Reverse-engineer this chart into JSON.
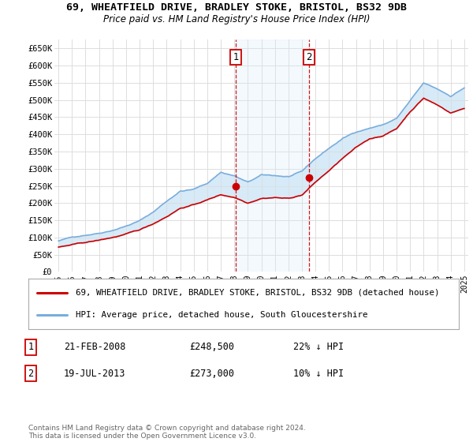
{
  "title": "69, WHEATFIELD DRIVE, BRADLEY STOKE, BRISTOL, BS32 9DB",
  "subtitle": "Price paid vs. HM Land Registry's House Price Index (HPI)",
  "legend_line1": "69, WHEATFIELD DRIVE, BRADLEY STOKE, BRISTOL, BS32 9DB (detached house)",
  "legend_line2": "HPI: Average price, detached house, South Gloucestershire",
  "footer": "Contains HM Land Registry data © Crown copyright and database right 2024.\nThis data is licensed under the Open Government Licence v3.0.",
  "transaction1_date": "21-FEB-2008",
  "transaction1_price": "£248,500",
  "transaction1_hpi": "22% ↓ HPI",
  "transaction2_date": "19-JUL-2013",
  "transaction2_price": "£273,000",
  "transaction2_hpi": "10% ↓ HPI",
  "red_color": "#cc0000",
  "blue_color": "#7aaddc",
  "blue_fill_color": "#d6eaf8",
  "vline_color": "#cc0000",
  "grid_color": "#dddddd",
  "bg_color": "#ffffff",
  "ylim": [
    0,
    675000
  ],
  "ytick_vals": [
    0,
    50000,
    100000,
    150000,
    200000,
    250000,
    300000,
    350000,
    400000,
    450000,
    500000,
    550000,
    600000,
    650000
  ],
  "ytick_labels": [
    "£0",
    "£50K",
    "£100K",
    "£150K",
    "£200K",
    "£250K",
    "£300K",
    "£350K",
    "£400K",
    "£450K",
    "£500K",
    "£550K",
    "£600K",
    "£650K"
  ],
  "xlim": [
    1994.7,
    2025.3
  ],
  "xtick_vals": [
    1995,
    1996,
    1997,
    1998,
    1999,
    2000,
    2001,
    2002,
    2003,
    2004,
    2005,
    2006,
    2007,
    2008,
    2009,
    2010,
    2011,
    2012,
    2013,
    2014,
    2015,
    2016,
    2017,
    2018,
    2019,
    2020,
    2021,
    2022,
    2023,
    2024,
    2025
  ],
  "hpi_x": [
    1995.0,
    1995.08,
    1995.17,
    1995.25,
    1995.33,
    1995.42,
    1995.5,
    1995.58,
    1995.67,
    1995.75,
    1995.83,
    1995.92,
    1996.0,
    1996.08,
    1996.17,
    1996.25,
    1996.33,
    1996.42,
    1996.5,
    1996.58,
    1996.67,
    1996.75,
    1996.83,
    1996.92,
    1997.0,
    1997.08,
    1997.17,
    1997.25,
    1997.33,
    1997.42,
    1997.5,
    1997.58,
    1997.67,
    1997.75,
    1997.83,
    1997.92,
    1998.0,
    1998.08,
    1998.17,
    1998.25,
    1998.33,
    1998.42,
    1998.5,
    1998.58,
    1998.67,
    1998.75,
    1998.83,
    1998.92,
    1999.0,
    1999.08,
    1999.17,
    1999.25,
    1999.33,
    1999.42,
    1999.5,
    1999.58,
    1999.67,
    1999.75,
    1999.83,
    1999.92,
    2000.0,
    2000.08,
    2000.17,
    2000.25,
    2000.33,
    2000.42,
    2000.5,
    2000.58,
    2000.67,
    2000.75,
    2000.83,
    2000.92,
    2001.0,
    2001.08,
    2001.17,
    2001.25,
    2001.33,
    2001.42,
    2001.5,
    2001.58,
    2001.67,
    2001.75,
    2001.83,
    2001.92,
    2002.0,
    2002.08,
    2002.17,
    2002.25,
    2002.33,
    2002.42,
    2002.5,
    2002.58,
    2002.67,
    2002.75,
    2002.83,
    2002.92,
    2003.0,
    2003.08,
    2003.17,
    2003.25,
    2003.33,
    2003.42,
    2003.5,
    2003.58,
    2003.67,
    2003.75,
    2003.83,
    2003.92,
    2004.0,
    2004.08,
    2004.17,
    2004.25,
    2004.33,
    2004.42,
    2004.5,
    2004.58,
    2004.67,
    2004.75,
    2004.83,
    2004.92,
    2005.0,
    2005.08,
    2005.17,
    2005.25,
    2005.33,
    2005.42,
    2005.5,
    2005.58,
    2005.67,
    2005.75,
    2005.83,
    2005.92,
    2006.0,
    2006.08,
    2006.17,
    2006.25,
    2006.33,
    2006.42,
    2006.5,
    2006.58,
    2006.67,
    2006.75,
    2006.83,
    2006.92,
    2007.0,
    2007.08,
    2007.17,
    2007.25,
    2007.33,
    2007.42,
    2007.5,
    2007.58,
    2007.67,
    2007.75,
    2007.83,
    2007.92,
    2008.0,
    2008.08,
    2008.17,
    2008.25,
    2008.33,
    2008.42,
    2008.5,
    2008.58,
    2008.67,
    2008.75,
    2008.83,
    2008.92,
    2009.0,
    2009.08,
    2009.17,
    2009.25,
    2009.33,
    2009.42,
    2009.5,
    2009.58,
    2009.67,
    2009.75,
    2009.83,
    2009.92,
    2010.0,
    2010.08,
    2010.17,
    2010.25,
    2010.33,
    2010.42,
    2010.5,
    2010.58,
    2010.67,
    2010.75,
    2010.83,
    2010.92,
    2011.0,
    2011.08,
    2011.17,
    2011.25,
    2011.33,
    2011.42,
    2011.5,
    2011.58,
    2011.67,
    2011.75,
    2011.83,
    2011.92,
    2012.0,
    2012.08,
    2012.17,
    2012.25,
    2012.33,
    2012.42,
    2012.5,
    2012.58,
    2012.67,
    2012.75,
    2012.83,
    2012.92,
    2013.0,
    2013.08,
    2013.17,
    2013.25,
    2013.33,
    2013.42,
    2013.5,
    2013.58,
    2013.67,
    2013.75,
    2013.83,
    2013.92,
    2014.0,
    2014.08,
    2014.17,
    2014.25,
    2014.33,
    2014.42,
    2014.5,
    2014.58,
    2014.67,
    2014.75,
    2014.83,
    2014.92,
    2015.0,
    2015.08,
    2015.17,
    2015.25,
    2015.33,
    2015.42,
    2015.5,
    2015.58,
    2015.67,
    2015.75,
    2015.83,
    2015.92,
    2016.0,
    2016.08,
    2016.17,
    2016.25,
    2016.33,
    2016.42,
    2016.5,
    2016.58,
    2016.67,
    2016.75,
    2016.83,
    2016.92,
    2017.0,
    2017.08,
    2017.17,
    2017.25,
    2017.33,
    2017.42,
    2017.5,
    2017.58,
    2017.67,
    2017.75,
    2017.83,
    2017.92,
    2018.0,
    2018.08,
    2018.17,
    2018.25,
    2018.33,
    2018.42,
    2018.5,
    2018.58,
    2018.67,
    2018.75,
    2018.83,
    2018.92,
    2019.0,
    2019.08,
    2019.17,
    2019.25,
    2019.33,
    2019.42,
    2019.5,
    2019.58,
    2019.67,
    2019.75,
    2019.83,
    2019.92,
    2020.0,
    2020.08,
    2020.17,
    2020.25,
    2020.33,
    2020.42,
    2020.5,
    2020.58,
    2020.67,
    2020.75,
    2020.83,
    2020.92,
    2021.0,
    2021.08,
    2021.17,
    2021.25,
    2021.33,
    2021.42,
    2021.5,
    2021.58,
    2021.67,
    2021.75,
    2021.83,
    2021.92,
    2022.0,
    2022.08,
    2022.17,
    2022.25,
    2022.33,
    2022.42,
    2022.5,
    2022.58,
    2022.67,
    2022.75,
    2022.83,
    2022.92,
    2023.0,
    2023.08,
    2023.17,
    2023.25,
    2023.33,
    2023.42,
    2023.5,
    2023.58,
    2023.67,
    2023.75,
    2023.83,
    2023.92,
    2024.0,
    2024.08,
    2024.17,
    2024.25,
    2024.33,
    2024.42,
    2024.5,
    2024.58,
    2024.67,
    2024.75,
    2024.83,
    2024.92,
    2025.0
  ],
  "hpi_y_anchors": {
    "1995": 90000,
    "1996": 100000,
    "1997": 108000,
    "1998": 115000,
    "1999": 125000,
    "2000": 138000,
    "2001": 153000,
    "2002": 178000,
    "2003": 210000,
    "2004": 240000,
    "2005": 245000,
    "2006": 262000,
    "2007": 295000,
    "2008": 285000,
    "2009": 265000,
    "2010": 285000,
    "2011": 283000,
    "2012": 280000,
    "2013": 293000,
    "2014": 330000,
    "2015": 360000,
    "2016": 388000,
    "2017": 408000,
    "2018": 420000,
    "2019": 430000,
    "2020": 448000,
    "2021": 498000,
    "2022": 548000,
    "2023": 530000,
    "2024": 510000,
    "2025": 535000
  },
  "red_y_anchors": {
    "1995": 72000,
    "1996": 78000,
    "1997": 84000,
    "1998": 90000,
    "1999": 98000,
    "2000": 107000,
    "2001": 118000,
    "2002": 136000,
    "2003": 158000,
    "2004": 183000,
    "2005": 193000,
    "2006": 207000,
    "2007": 222000,
    "2008": 215000,
    "2009": 200000,
    "2010": 215000,
    "2011": 218000,
    "2012": 215000,
    "2013": 225000,
    "2014": 262000,
    "2015": 295000,
    "2016": 330000,
    "2017": 360000,
    "2018": 385000,
    "2019": 395000,
    "2020": 415000,
    "2021": 465000,
    "2022": 505000,
    "2023": 485000,
    "2024": 462000,
    "2025": 475000
  },
  "transaction1_x": 2008.13,
  "transaction1_y": 248500,
  "transaction2_x": 2013.54,
  "transaction2_y": 273000
}
